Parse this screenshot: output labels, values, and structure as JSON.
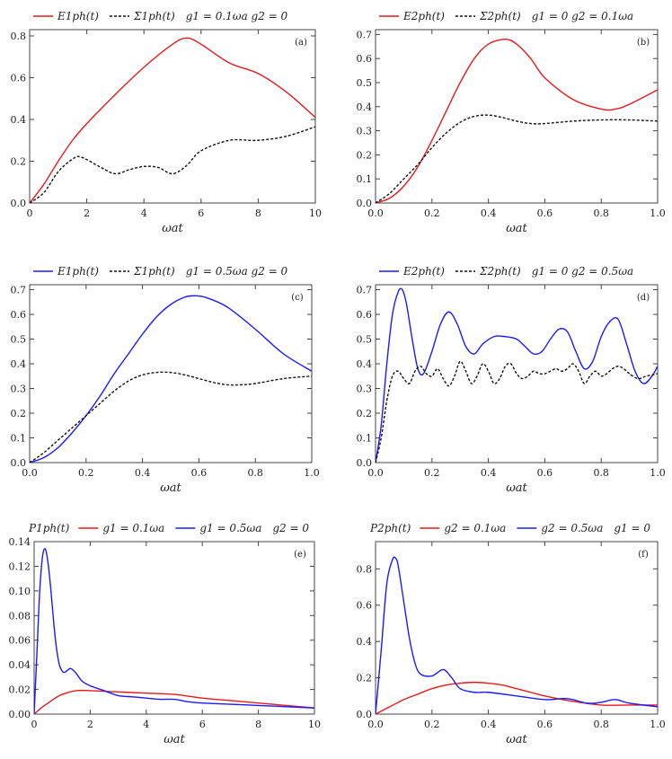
{
  "chart_data": [
    {
      "id": "a",
      "type": "line",
      "panel_label": "(a)",
      "legend_text": "g1 = 0.1ωa   g2 = 0",
      "xlabel": "ωat",
      "xlim": [
        0,
        10
      ],
      "ylim": [
        0,
        0.83
      ],
      "xticks": [
        0,
        2,
        4,
        6,
        8,
        10
      ],
      "xtick_labels": [
        "0",
        "2",
        "4",
        "6",
        "8",
        "10"
      ],
      "yticks": [
        0,
        0.2,
        0.4,
        0.6,
        0.8
      ],
      "ytick_labels": [
        "0.0",
        "0.2",
        "0.4",
        "0.6",
        "0.8"
      ],
      "series": [
        {
          "name": "E1ph(t)",
          "color": "#e41a1c",
          "dash": "solid",
          "x": [
            0,
            0.5,
            1,
            1.5,
            2,
            3,
            4,
            5,
            5.5,
            6,
            7,
            8,
            9,
            10
          ],
          "y": [
            0,
            0.09,
            0.2,
            0.3,
            0.38,
            0.52,
            0.65,
            0.76,
            0.79,
            0.76,
            0.67,
            0.62,
            0.53,
            0.41
          ]
        },
        {
          "name": "Σ1ph(t)",
          "color": "#111111",
          "dash": "dashed",
          "x": [
            0,
            0.5,
            1,
            1.5,
            1.8,
            2.5,
            3,
            3.5,
            4,
            4.5,
            5,
            5.5,
            6,
            7,
            8,
            9,
            10
          ],
          "y": [
            0,
            0.05,
            0.15,
            0.21,
            0.22,
            0.17,
            0.14,
            0.16,
            0.175,
            0.17,
            0.14,
            0.18,
            0.25,
            0.3,
            0.3,
            0.32,
            0.365
          ]
        }
      ]
    },
    {
      "id": "b",
      "type": "line",
      "panel_label": "(b)",
      "legend_text": "g1 = 0   g2 = 0.1ωa",
      "xlabel": "ωat",
      "xlim": [
        0,
        1
      ],
      "ylim": [
        0,
        0.72
      ],
      "xticks": [
        0,
        0.2,
        0.4,
        0.6,
        0.8,
        1.0
      ],
      "xtick_labels": [
        "0.0",
        "0.2",
        "0.4",
        "0.6",
        "0.8",
        "1.0"
      ],
      "yticks": [
        0,
        0.1,
        0.2,
        0.3,
        0.4,
        0.5,
        0.6,
        0.7
      ],
      "ytick_labels": [
        "0.0",
        "0.1",
        "0.2",
        "0.3",
        "0.4",
        "0.5",
        "0.6",
        "0.7"
      ],
      "series": [
        {
          "name": "E2ph(t)",
          "color": "#e41a1c",
          "dash": "solid",
          "x": [
            0,
            0.05,
            0.1,
            0.15,
            0.2,
            0.25,
            0.3,
            0.35,
            0.4,
            0.46,
            0.5,
            0.55,
            0.6,
            0.7,
            0.8,
            0.85,
            0.9,
            1.0
          ],
          "y": [
            0,
            0.02,
            0.07,
            0.15,
            0.26,
            0.38,
            0.5,
            0.6,
            0.66,
            0.68,
            0.66,
            0.6,
            0.52,
            0.43,
            0.39,
            0.39,
            0.41,
            0.47
          ]
        },
        {
          "name": "Σ2ph(t)",
          "color": "#111111",
          "dash": "dashed",
          "x": [
            0,
            0.05,
            0.1,
            0.15,
            0.2,
            0.25,
            0.3,
            0.35,
            0.4,
            0.45,
            0.5,
            0.55,
            0.6,
            0.7,
            0.8,
            0.9,
            1.0
          ],
          "y": [
            0,
            0.04,
            0.1,
            0.16,
            0.23,
            0.29,
            0.335,
            0.36,
            0.365,
            0.355,
            0.34,
            0.33,
            0.33,
            0.34,
            0.345,
            0.345,
            0.34
          ]
        }
      ]
    },
    {
      "id": "c",
      "type": "line",
      "panel_label": "(c)",
      "legend_text": "g1 = 0.5ωa   g2 = 0",
      "xlabel": "ωat",
      "xlim": [
        0,
        1
      ],
      "ylim": [
        0,
        0.72
      ],
      "xticks": [
        0,
        0.2,
        0.4,
        0.6,
        0.8,
        1.0
      ],
      "xtick_labels": [
        "0.0",
        "0.2",
        "0.4",
        "0.6",
        "0.8",
        "1.0"
      ],
      "yticks": [
        0,
        0.1,
        0.2,
        0.3,
        0.4,
        0.5,
        0.6,
        0.7
      ],
      "ytick_labels": [
        "0.0",
        "0.1",
        "0.2",
        "0.3",
        "0.4",
        "0.5",
        "0.6",
        "0.7"
      ],
      "series": [
        {
          "name": "E1ph(t)",
          "color": "#1a1aff",
          "dash": "solid",
          "x": [
            0,
            0.05,
            0.1,
            0.15,
            0.2,
            0.25,
            0.3,
            0.35,
            0.4,
            0.45,
            0.5,
            0.55,
            0.58,
            0.62,
            0.7,
            0.8,
            0.9,
            1.0
          ],
          "y": [
            0,
            0.02,
            0.06,
            0.12,
            0.19,
            0.27,
            0.36,
            0.44,
            0.52,
            0.59,
            0.64,
            0.67,
            0.675,
            0.67,
            0.63,
            0.54,
            0.44,
            0.37
          ]
        },
        {
          "name": "Σ1ph(t)",
          "color": "#111111",
          "dash": "dashed",
          "x": [
            0,
            0.05,
            0.1,
            0.15,
            0.2,
            0.25,
            0.3,
            0.35,
            0.4,
            0.45,
            0.5,
            0.55,
            0.6,
            0.65,
            0.7,
            0.75,
            0.8,
            0.9,
            1.0
          ],
          "y": [
            0,
            0.04,
            0.09,
            0.14,
            0.19,
            0.24,
            0.29,
            0.33,
            0.355,
            0.365,
            0.365,
            0.355,
            0.34,
            0.325,
            0.315,
            0.315,
            0.32,
            0.34,
            0.35
          ]
        }
      ]
    },
    {
      "id": "d",
      "type": "line",
      "panel_label": "(d)",
      "legend_text": "g1 = 0   g2 = 0.5ωa",
      "xlabel": "ωat",
      "xlim": [
        0,
        1
      ],
      "ylim": [
        0,
        0.72
      ],
      "xticks": [
        0,
        0.2,
        0.4,
        0.6,
        0.8,
        1.0
      ],
      "xtick_labels": [
        "0.0",
        "0.2",
        "0.4",
        "0.6",
        "0.8",
        "1.0"
      ],
      "yticks": [
        0,
        0.1,
        0.2,
        0.3,
        0.4,
        0.5,
        0.6,
        0.7
      ],
      "ytick_labels": [
        "0.0",
        "0.1",
        "0.2",
        "0.3",
        "0.4",
        "0.5",
        "0.6",
        "0.7"
      ],
      "series": [
        {
          "name": "E2ph(t)",
          "color": "#1a1aff",
          "dash": "solid",
          "x": [
            0,
            0.02,
            0.04,
            0.06,
            0.08,
            0.095,
            0.11,
            0.13,
            0.15,
            0.17,
            0.2,
            0.23,
            0.26,
            0.29,
            0.32,
            0.35,
            0.38,
            0.42,
            0.46,
            0.5,
            0.53,
            0.56,
            0.59,
            0.62,
            0.65,
            0.68,
            0.71,
            0.74,
            0.77,
            0.8,
            0.83,
            0.86,
            0.89,
            0.92,
            0.95,
            0.98,
            1.0
          ],
          "y": [
            0,
            0.15,
            0.4,
            0.6,
            0.69,
            0.7,
            0.64,
            0.5,
            0.38,
            0.36,
            0.45,
            0.56,
            0.61,
            0.56,
            0.47,
            0.44,
            0.48,
            0.51,
            0.51,
            0.5,
            0.47,
            0.44,
            0.45,
            0.5,
            0.54,
            0.53,
            0.45,
            0.38,
            0.41,
            0.51,
            0.57,
            0.58,
            0.48,
            0.37,
            0.32,
            0.35,
            0.39
          ]
        },
        {
          "name": "Σ2ph(t)",
          "color": "#111111",
          "dash": "dashed",
          "x": [
            0,
            0.02,
            0.04,
            0.06,
            0.08,
            0.1,
            0.12,
            0.14,
            0.16,
            0.18,
            0.2,
            0.22,
            0.24,
            0.26,
            0.28,
            0.3,
            0.32,
            0.34,
            0.36,
            0.38,
            0.4,
            0.42,
            0.44,
            0.46,
            0.48,
            0.5,
            0.52,
            0.54,
            0.56,
            0.58,
            0.6,
            0.62,
            0.64,
            0.66,
            0.68,
            0.7,
            0.72,
            0.74,
            0.76,
            0.78,
            0.8,
            0.82,
            0.84,
            0.86,
            0.88,
            0.9,
            0.93,
            0.96,
            1.0
          ],
          "y": [
            0,
            0.1,
            0.25,
            0.35,
            0.37,
            0.34,
            0.32,
            0.37,
            0.39,
            0.36,
            0.35,
            0.38,
            0.34,
            0.31,
            0.35,
            0.41,
            0.37,
            0.32,
            0.35,
            0.4,
            0.37,
            0.32,
            0.34,
            0.39,
            0.4,
            0.36,
            0.34,
            0.35,
            0.37,
            0.36,
            0.36,
            0.37,
            0.38,
            0.37,
            0.38,
            0.4,
            0.37,
            0.32,
            0.35,
            0.37,
            0.35,
            0.36,
            0.38,
            0.39,
            0.38,
            0.36,
            0.34,
            0.35,
            0.36
          ]
        }
      ]
    },
    {
      "id": "e",
      "type": "line",
      "panel_label": "(e)",
      "legend_title": "P1ph(t)",
      "legend_text": "g2 = 0",
      "xlabel": "ωat",
      "xlim": [
        0,
        10
      ],
      "ylim": [
        0,
        0.14
      ],
      "xticks": [
        0,
        2,
        4,
        6,
        8,
        10
      ],
      "xtick_labels": [
        "0",
        "2",
        "4",
        "6",
        "8",
        "10"
      ],
      "yticks": [
        0,
        0.02,
        0.04,
        0.06,
        0.08,
        0.1,
        0.12,
        0.14
      ],
      "ytick_labels": [
        "0.00",
        "0.02",
        "0.04",
        "0.06",
        "0.08",
        "0.10",
        "0.12",
        "0.14"
      ],
      "series": [
        {
          "name": "g1 = 0.1ωa",
          "color": "#e41a1c",
          "dash": "solid",
          "x": [
            0,
            0.25,
            0.5,
            0.75,
            1,
            1.5,
            2,
            3,
            4,
            5,
            6,
            7,
            8,
            9,
            10
          ],
          "y": [
            0,
            0.005,
            0.009,
            0.013,
            0.016,
            0.019,
            0.019,
            0.018,
            0.017,
            0.016,
            0.013,
            0.011,
            0.009,
            0.007,
            0.005
          ]
        },
        {
          "name": "g1 = 0.5ωa",
          "color": "#1a1aff",
          "dash": "solid",
          "x": [
            0,
            0.1,
            0.2,
            0.3,
            0.4,
            0.5,
            0.6,
            0.7,
            0.8,
            0.9,
            1.0,
            1.1,
            1.3,
            1.5,
            1.7,
            2.0,
            2.5,
            3.0,
            3.5,
            4.0,
            4.5,
            5.0,
            5.5,
            6,
            7,
            8,
            9,
            10
          ],
          "y": [
            0,
            0.05,
            0.1,
            0.128,
            0.134,
            0.122,
            0.1,
            0.074,
            0.053,
            0.04,
            0.035,
            0.034,
            0.037,
            0.033,
            0.027,
            0.023,
            0.019,
            0.015,
            0.014,
            0.013,
            0.012,
            0.012,
            0.01,
            0.009,
            0.008,
            0.007,
            0.006,
            0.005
          ]
        }
      ]
    },
    {
      "id": "f",
      "type": "line",
      "panel_label": "(f)",
      "legend_title": "P2ph(t)",
      "legend_text": "g1 = 0",
      "xlabel": "ωat",
      "xlim": [
        0,
        1
      ],
      "ylim": [
        0,
        0.95
      ],
      "xticks": [
        0,
        0.2,
        0.4,
        0.6,
        0.8,
        1.0
      ],
      "xtick_labels": [
        "0.0",
        "0.2",
        "0.4",
        "0.6",
        "0.8",
        "1.0"
      ],
      "yticks": [
        0,
        0.2,
        0.4,
        0.6,
        0.8
      ],
      "ytick_labels": [
        "0.0",
        "0.2",
        "0.4",
        "0.6",
        "0.8"
      ],
      "series": [
        {
          "name": "g2 = 0.1ωa",
          "color": "#e41a1c",
          "dash": "solid",
          "x": [
            0,
            0.05,
            0.1,
            0.15,
            0.2,
            0.25,
            0.3,
            0.35,
            0.4,
            0.45,
            0.5,
            0.55,
            0.6,
            0.7,
            0.8,
            0.9,
            1.0
          ],
          "y": [
            0,
            0.04,
            0.08,
            0.11,
            0.14,
            0.16,
            0.17,
            0.175,
            0.17,
            0.16,
            0.14,
            0.12,
            0.1,
            0.07,
            0.05,
            0.05,
            0.05
          ]
        },
        {
          "name": "g2 = 0.5ωa",
          "color": "#1a1aff",
          "dash": "solid",
          "x": [
            0,
            0.02,
            0.04,
            0.06,
            0.07,
            0.08,
            0.1,
            0.12,
            0.14,
            0.16,
            0.2,
            0.24,
            0.27,
            0.3,
            0.35,
            0.4,
            0.5,
            0.6,
            0.68,
            0.75,
            0.8,
            0.85,
            0.9,
            1.0
          ],
          "y": [
            0,
            0.35,
            0.72,
            0.85,
            0.86,
            0.82,
            0.62,
            0.42,
            0.28,
            0.22,
            0.21,
            0.245,
            0.2,
            0.14,
            0.12,
            0.12,
            0.1,
            0.08,
            0.085,
            0.06,
            0.065,
            0.08,
            0.06,
            0.04
          ]
        }
      ]
    }
  ]
}
